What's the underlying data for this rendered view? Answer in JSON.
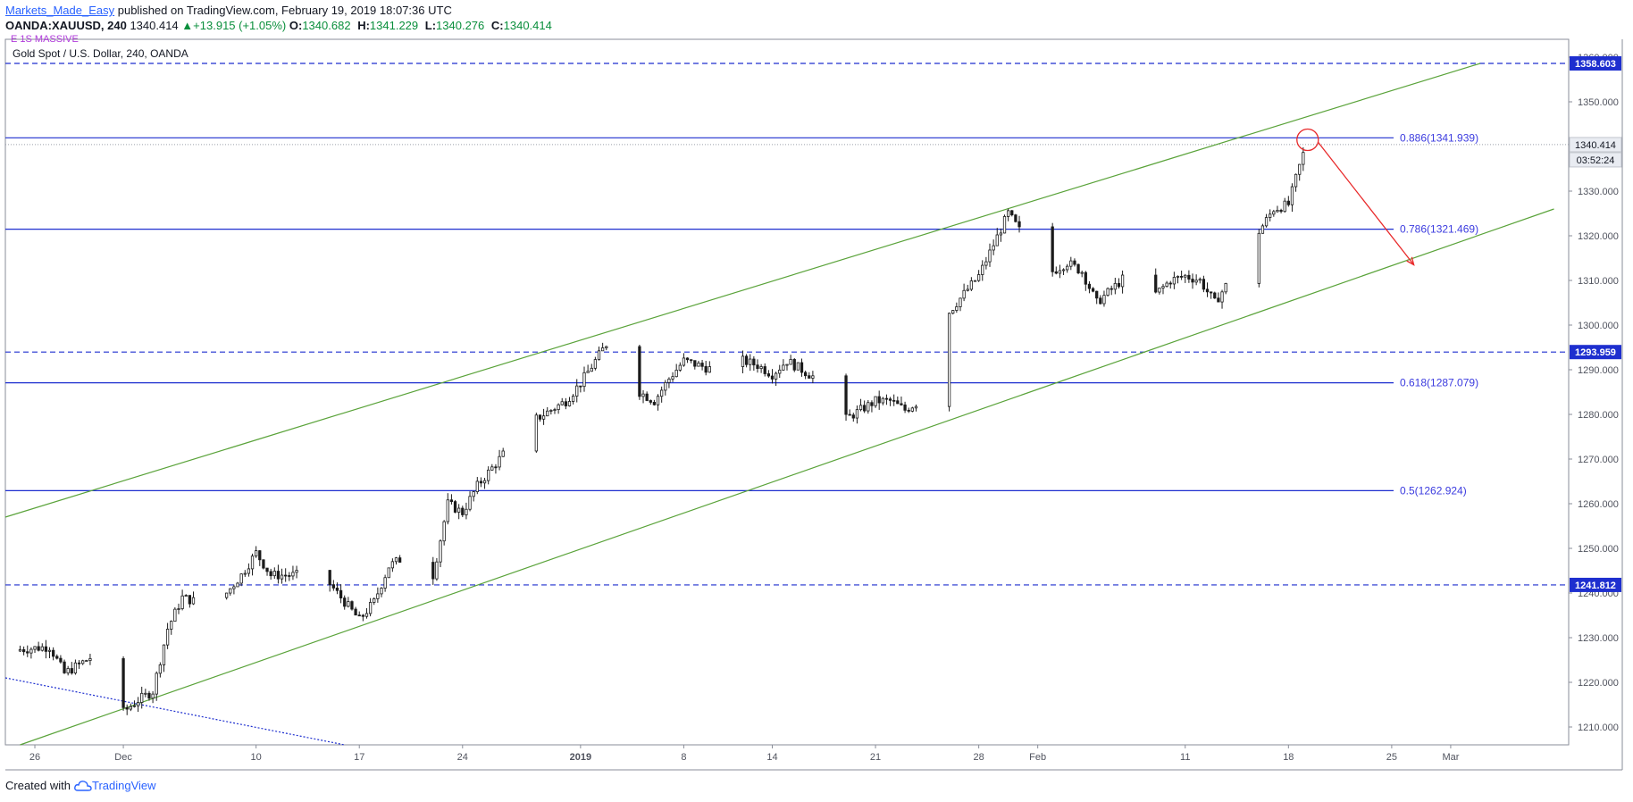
{
  "header": {
    "author": "Markets_Made_Easy",
    "published_text": " published on TradingView.com, February 19, 2019 18:07:36 UTC",
    "symbol": "OANDA:XAUUSD, 240",
    "last": "1340.414",
    "change": "+13.915 (+1.05%)",
    "o_label": "O:",
    "o_value": "1340.682",
    "h_label": "H:",
    "h_value": "1341.229",
    "l_label": "L:",
    "l_value": "1340.276",
    "c_label": "C:",
    "c_value": "1340.414"
  },
  "pane": {
    "title": "Gold Spot / U.S. Dollar, 240, OANDA",
    "indicator_stub": "E 1S MASSIVE"
  },
  "footer": {
    "created_with": "Created with",
    "logo_text": "TradingView"
  },
  "colors": {
    "fib_line": "#1e2fcf",
    "fib_text": "#3b3bdf",
    "channel": "#5aa33a",
    "dashed_level": "#1e2fcf",
    "arrow": "#e8292a",
    "circle": "#e8292a",
    "candle": "#1b1b1b",
    "badge_bg": "#1e2fcf",
    "axis_text": "#50535e"
  },
  "chart_data": {
    "type": "candlestick",
    "symbol": "OANDA:XAUUSD",
    "timeframe": "240",
    "ylim": [
      1206,
      1364
    ],
    "y_ticks": [
      "1210.000",
      "1220.000",
      "1230.000",
      "1240.000",
      "1250.000",
      "1260.000",
      "1270.000",
      "1280.000",
      "1290.000",
      "1300.000",
      "1310.000",
      "1320.000",
      "1330.000",
      "1340.000",
      "1350.000",
      "1360.000"
    ],
    "x_ticks": [
      {
        "label": "26",
        "day": -6,
        "bold": false
      },
      {
        "label": "Dec",
        "day": 0,
        "bold": false
      },
      {
        "label": "10",
        "day": 9,
        "bold": false
      },
      {
        "label": "17",
        "day": 16,
        "bold": false
      },
      {
        "label": "24",
        "day": 23,
        "bold": false
      },
      {
        "label": "2019",
        "day": 31,
        "bold": true
      },
      {
        "label": "8",
        "day": 38,
        "bold": false
      },
      {
        "label": "14",
        "day": 44,
        "bold": false
      },
      {
        "label": "21",
        "day": 51,
        "bold": false
      },
      {
        "label": "28",
        "day": 58,
        "bold": false
      },
      {
        "label": "Feb",
        "day": 62,
        "bold": false
      },
      {
        "label": "11",
        "day": 72,
        "bold": false
      },
      {
        "label": "18",
        "day": 79,
        "bold": false
      },
      {
        "label": "25",
        "day": 86,
        "bold": false
      },
      {
        "label": "Mar",
        "day": 90,
        "bold": false
      }
    ],
    "x_range_days": [
      -8,
      98
    ],
    "close_path": [
      [
        -8,
        1227
      ],
      [
        -5,
        1228
      ],
      [
        -4,
        1222
      ],
      [
        -2,
        1226
      ],
      [
        -1,
        1218
      ],
      [
        -0.5,
        1212
      ],
      [
        1,
        1216
      ],
      [
        2,
        1218
      ],
      [
        3,
        1232
      ],
      [
        4,
        1239
      ],
      [
        5,
        1238
      ],
      [
        6,
        1236
      ],
      [
        7,
        1240
      ],
      [
        8,
        1244
      ],
      [
        9,
        1249
      ],
      [
        10,
        1244
      ],
      [
        12,
        1244
      ],
      [
        14,
        1242
      ],
      [
        15,
        1238
      ],
      [
        16,
        1234
      ],
      [
        17,
        1238
      ],
      [
        18,
        1246
      ],
      [
        19,
        1248
      ],
      [
        20,
        1252
      ],
      [
        21,
        1244
      ],
      [
        22,
        1260
      ],
      [
        23,
        1258
      ],
      [
        24,
        1264
      ],
      [
        25,
        1268
      ],
      [
        26,
        1272
      ],
      [
        27,
        1276
      ],
      [
        28,
        1279
      ],
      [
        29,
        1281
      ],
      [
        30,
        1283
      ],
      [
        31,
        1287
      ],
      [
        32,
        1292
      ],
      [
        33,
        1297
      ],
      [
        34,
        1290
      ],
      [
        35,
        1285
      ],
      [
        36,
        1283
      ],
      [
        37,
        1288
      ],
      [
        38,
        1292
      ],
      [
        39,
        1291
      ],
      [
        40,
        1290
      ],
      [
        41,
        1289
      ],
      [
        42,
        1292
      ],
      [
        43,
        1291
      ],
      [
        44,
        1289
      ],
      [
        45,
        1292
      ],
      [
        46,
        1290
      ],
      [
        47,
        1288
      ],
      [
        48,
        1282
      ],
      [
        49,
        1279
      ],
      [
        50,
        1281
      ],
      [
        51,
        1283
      ],
      [
        52,
        1283
      ],
      [
        53,
        1281
      ],
      [
        54,
        1283
      ],
      [
        55,
        1298
      ],
      [
        56,
        1303
      ],
      [
        57,
        1307
      ],
      [
        58,
        1311
      ],
      [
        59,
        1318
      ],
      [
        60,
        1325
      ],
      [
        61,
        1320
      ],
      [
        62,
        1316
      ],
      [
        63,
        1312
      ],
      [
        64,
        1314
      ],
      [
        65,
        1312
      ],
      [
        66,
        1305
      ],
      [
        67,
        1308
      ],
      [
        68,
        1311
      ],
      [
        69,
        1314
      ],
      [
        70,
        1307
      ],
      [
        71,
        1310
      ],
      [
        72,
        1311
      ],
      [
        73,
        1310
      ],
      [
        74,
        1305
      ],
      [
        75,
        1310
      ],
      [
        76,
        1314
      ],
      [
        77,
        1321
      ],
      [
        78,
        1326
      ],
      [
        79,
        1327
      ],
      [
        79.6,
        1334
      ],
      [
        80.2,
        1340.4
      ]
    ],
    "fib_levels": [
      {
        "ratio": "0.886",
        "price": 1341.939,
        "label": "0.886(1341.939)"
      },
      {
        "ratio": "0.786",
        "price": 1321.469,
        "label": "0.786(1321.469)"
      },
      {
        "ratio": "0.618",
        "price": 1287.079,
        "label": "0.618(1287.079)"
      },
      {
        "ratio": "0.5",
        "price": 1262.924,
        "label": "0.5(1262.924)"
      }
    ],
    "horizontal_levels": [
      {
        "price": 1358.603,
        "label": "1358.603"
      },
      {
        "price": 1293.959,
        "label": "1293.959"
      },
      {
        "price": 1241.812,
        "label": "1241.812"
      }
    ],
    "last_price": {
      "price": 1340.414,
      "label": "1340.414",
      "countdown": "03:52:24"
    },
    "channel_upper": [
      [
        -8,
        1257
      ],
      [
        92,
        1358.6
      ]
    ],
    "channel_lower": [
      [
        -7,
        1206
      ],
      [
        97,
        1326
      ]
    ],
    "dotted_line": [
      [
        -8,
        1221
      ],
      [
        15,
        1206
      ]
    ],
    "forecast_arrow": [
      [
        81,
        1341
      ],
      [
        87.5,
        1313.5
      ]
    ],
    "highlight_circle": {
      "day": 80.3,
      "price": 1341.5
    }
  }
}
